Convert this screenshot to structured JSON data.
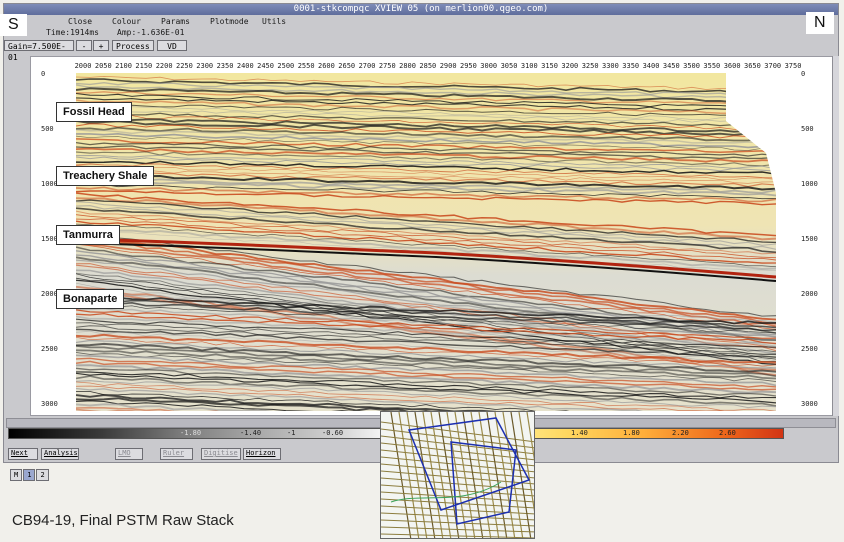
{
  "window": {
    "title": "0001-stkcompqc XVIEW 05 (on merlion00.qgeo.com)",
    "menu": [
      "Close",
      "Colour",
      "Params",
      "Plotmode",
      "Utils"
    ],
    "info_time": "Time:1914ms",
    "info_amp": "Amp:-1.636E-01",
    "gain": "Gain=7.500E-01",
    "process_label": "Process",
    "vd_label": "VD"
  },
  "axes": {
    "x_ticks": [
      "2000",
      "2050",
      "2100",
      "2150",
      "2200",
      "2250",
      "2300",
      "2350",
      "2400",
      "2450",
      "2500",
      "2550",
      "2600",
      "2650",
      "2700",
      "2750",
      "2800",
      "2850",
      "2900",
      "2950",
      "3000",
      "3050",
      "3100",
      "3150",
      "3200",
      "3250",
      "3300",
      "3350",
      "3400",
      "3450",
      "3500",
      "3550",
      "3600",
      "3650",
      "3700",
      "3750"
    ],
    "y_ticks": [
      "0",
      "500",
      "1000",
      "1500",
      "2000",
      "2500",
      "3000"
    ]
  },
  "colorbar_labels": [
    "-1.80",
    "-1.40",
    "-1",
    "-0.60",
    "1.40",
    "1.80",
    "2.20",
    "2.60"
  ],
  "buttons": [
    "Next",
    "Analysis",
    "LMO",
    "Ruler",
    "Digitise",
    "Horizon"
  ],
  "pages": [
    "M",
    "1",
    "2"
  ],
  "overlay": {
    "south": "S",
    "north": "N",
    "horizons": [
      "Fossil Head",
      "Treachery Shale",
      "Tanmurra",
      "Bonaparte"
    ],
    "caption": "CB94-19, Final PSTM Raw Stack"
  },
  "colors": {
    "title_bar": "#6f7cab",
    "peak": "#d84a1a",
    "trough": "#111111"
  }
}
